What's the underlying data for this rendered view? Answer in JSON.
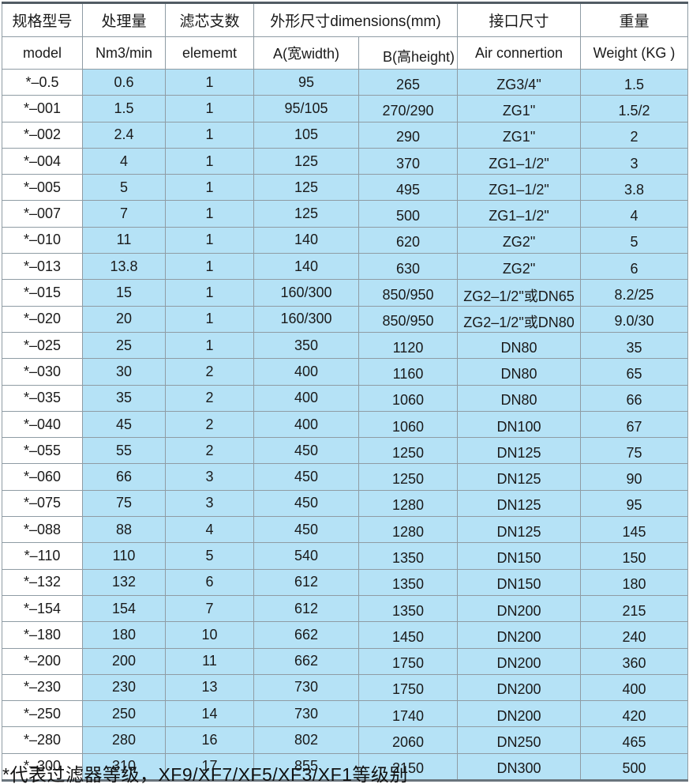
{
  "colors": {
    "cell_blue": "#b5e2f6",
    "border_gray": "#8f9ca4",
    "border_dark": "#525c64",
    "text": "#1a1a1a",
    "background": "#ffffff"
  },
  "table": {
    "header_row1": {
      "model_group": "规格型号",
      "flow": "处理量",
      "elements": "滤芯支数",
      "dimensions": "外形尺寸dimensions(mm)",
      "connection": "接口尺寸",
      "weight": "重量"
    },
    "header_row2": {
      "model": "model",
      "flow_unit": "Nm3/min",
      "elements_unit": "elememt",
      "dim_a": "A(宽width)",
      "dim_b": "B(高height)",
      "connection_en": "Air connertion",
      "weight_en": "Weight (KG )"
    },
    "rows": [
      [
        "*–0.5",
        "0.6",
        "1",
        "95",
        "265",
        "ZG3/4\"",
        "1.5"
      ],
      [
        "*–001",
        "1.5",
        "1",
        "95/105",
        "270/290",
        "ZG1\"",
        "1.5/2"
      ],
      [
        "*–002",
        "2.4",
        "1",
        "105",
        "290",
        "ZG1\"",
        "2"
      ],
      [
        "*–004",
        "4",
        "1",
        "125",
        "370",
        "ZG1–1/2\"",
        "3"
      ],
      [
        "*–005",
        "5",
        "1",
        "125",
        "495",
        "ZG1–1/2\"",
        "3.8"
      ],
      [
        "*–007",
        "7",
        "1",
        "125",
        "500",
        "ZG1–1/2\"",
        "4"
      ],
      [
        "*–010",
        "11",
        "1",
        "140",
        "620",
        "ZG2\"",
        "5"
      ],
      [
        "*–013",
        "13.8",
        "1",
        "140",
        "630",
        "ZG2\"",
        "6"
      ],
      [
        "*–015",
        "15",
        "1",
        "160/300",
        "850/950",
        "ZG2–1/2\"或DN65",
        "8.2/25"
      ],
      [
        "*–020",
        "20",
        "1",
        "160/300",
        "850/950",
        "ZG2–1/2\"或DN80",
        "9.0/30"
      ],
      [
        "*–025",
        "25",
        "1",
        "350",
        "1120",
        "DN80",
        "35"
      ],
      [
        "*–030",
        "30",
        "2",
        "400",
        "1160",
        "DN80",
        "65"
      ],
      [
        "*–035",
        "35",
        "2",
        "400",
        "1060",
        "DN80",
        "66"
      ],
      [
        "*–040",
        "45",
        "2",
        "400",
        "1060",
        "DN100",
        "67"
      ],
      [
        "*–055",
        "55",
        "2",
        "450",
        "1250",
        "DN125",
        "75"
      ],
      [
        "*–060",
        "66",
        "3",
        "450",
        "1250",
        "DN125",
        "90"
      ],
      [
        "*–075",
        "75",
        "3",
        "450",
        "1280",
        "DN125",
        "95"
      ],
      [
        "*–088",
        "88",
        "4",
        "450",
        "1280",
        "DN125",
        "145"
      ],
      [
        "*–110",
        "110",
        "5",
        "540",
        "1350",
        "DN150",
        "150"
      ],
      [
        "*–132",
        "132",
        "6",
        "612",
        "1350",
        "DN150",
        "180"
      ],
      [
        "*–154",
        "154",
        "7",
        "612",
        "1350",
        "DN200",
        "215"
      ],
      [
        "*–180",
        "180",
        "10",
        "662",
        "1450",
        "DN200",
        "240"
      ],
      [
        "*–200",
        "200",
        "11",
        "662",
        "1750",
        "DN200",
        "360"
      ],
      [
        "*–230",
        "230",
        "13",
        "730",
        "1750",
        "DN200",
        "400"
      ],
      [
        "*–250",
        "250",
        "14",
        "730",
        "1740",
        "DN200",
        "420"
      ],
      [
        "*–280",
        "280",
        "16",
        "802",
        "2060",
        "DN250",
        "465"
      ],
      [
        "*–300",
        "310",
        "17",
        "855",
        "2150",
        "DN300",
        "500"
      ]
    ],
    "footnote": "*代表过滤器等级，XF9/XF7/XF5/XF3/XF1等级别"
  }
}
